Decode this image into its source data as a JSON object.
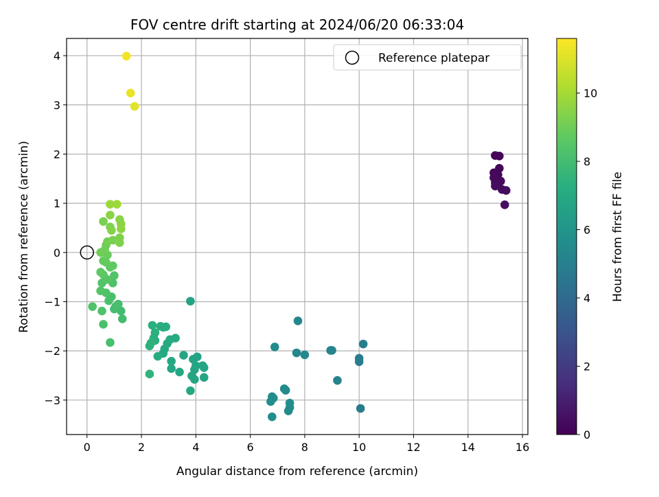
{
  "chart_data": {
    "type": "scatter",
    "title": "FOV centre drift starting at 2024/06/20 06:33:04",
    "xlabel": "Angular distance from reference (arcmin)",
    "ylabel": "Rotation from reference (arcmin)",
    "xlim": [
      -0.75,
      16.2
    ],
    "ylim": [
      -3.7,
      4.35
    ],
    "xticks": [
      0,
      2,
      4,
      6,
      8,
      10,
      12,
      14,
      16
    ],
    "yticks": [
      -3,
      -2,
      -1,
      0,
      1,
      2,
      3,
      4
    ],
    "grid": true,
    "legend": {
      "position": "top-right",
      "label": "Reference platepar",
      "marker": "open-circle"
    },
    "reference_point": {
      "x": 0,
      "y": 0
    },
    "colorbar": {
      "label": "Hours from first FF file",
      "range": [
        0,
        11.6
      ],
      "ticks": [
        0,
        2,
        4,
        6,
        8,
        10
      ],
      "colormap": "viridis"
    },
    "points": [
      {
        "x": 15.0,
        "y": 1.97,
        "c": 0.1
      },
      {
        "x": 15.15,
        "y": 1.96,
        "c": 0.1
      },
      {
        "x": 15.15,
        "y": 1.71,
        "c": 0.2
      },
      {
        "x": 14.95,
        "y": 1.62,
        "c": 0.2
      },
      {
        "x": 15.1,
        "y": 1.58,
        "c": 0.2
      },
      {
        "x": 14.95,
        "y": 1.52,
        "c": 0.3
      },
      {
        "x": 15.05,
        "y": 1.48,
        "c": 0.3
      },
      {
        "x": 15.2,
        "y": 1.45,
        "c": 0.3
      },
      {
        "x": 15.0,
        "y": 1.42,
        "c": 0.3
      },
      {
        "x": 15.1,
        "y": 1.38,
        "c": 0.3
      },
      {
        "x": 15.0,
        "y": 1.35,
        "c": 0.4
      },
      {
        "x": 15.25,
        "y": 1.28,
        "c": 0.4
      },
      {
        "x": 15.4,
        "y": 1.26,
        "c": 0.4
      },
      {
        "x": 15.35,
        "y": 0.97,
        "c": 0.5
      },
      {
        "x": 10.15,
        "y": -1.86,
        "c": 4.9
      },
      {
        "x": 10.0,
        "y": -2.15,
        "c": 4.9
      },
      {
        "x": 10.0,
        "y": -2.22,
        "c": 4.9
      },
      {
        "x": 10.05,
        "y": -3.17,
        "c": 4.8
      },
      {
        "x": 9.2,
        "y": -2.6,
        "c": 5.1
      },
      {
        "x": 8.95,
        "y": -1.99,
        "c": 5.2
      },
      {
        "x": 9.0,
        "y": -1.99,
        "c": 5.2
      },
      {
        "x": 8.0,
        "y": -2.08,
        "c": 5.4
      },
      {
        "x": 7.7,
        "y": -2.04,
        "c": 5.4
      },
      {
        "x": 7.75,
        "y": -1.39,
        "c": 5.3
      },
      {
        "x": 6.9,
        "y": -1.92,
        "c": 5.5
      },
      {
        "x": 7.25,
        "y": -2.77,
        "c": 5.5
      },
      {
        "x": 7.3,
        "y": -2.8,
        "c": 5.5
      },
      {
        "x": 7.45,
        "y": -3.06,
        "c": 5.6
      },
      {
        "x": 7.45,
        "y": -3.15,
        "c": 5.6
      },
      {
        "x": 7.4,
        "y": -3.22,
        "c": 5.6
      },
      {
        "x": 6.8,
        "y": -2.93,
        "c": 5.6
      },
      {
        "x": 6.85,
        "y": -2.96,
        "c": 5.6
      },
      {
        "x": 6.75,
        "y": -3.03,
        "c": 5.6
      },
      {
        "x": 6.8,
        "y": -3.34,
        "c": 5.6
      },
      {
        "x": 3.8,
        "y": -0.99,
        "c": 6.7
      },
      {
        "x": 4.05,
        "y": -2.12,
        "c": 6.7
      },
      {
        "x": 3.9,
        "y": -2.17,
        "c": 6.7
      },
      {
        "x": 3.55,
        "y": -2.09,
        "c": 6.8
      },
      {
        "x": 4.0,
        "y": -2.3,
        "c": 6.8
      },
      {
        "x": 4.25,
        "y": -2.3,
        "c": 6.8
      },
      {
        "x": 4.3,
        "y": -2.34,
        "c": 6.8
      },
      {
        "x": 3.95,
        "y": -2.38,
        "c": 6.8
      },
      {
        "x": 4.3,
        "y": -2.54,
        "c": 6.8
      },
      {
        "x": 3.85,
        "y": -2.51,
        "c": 6.8
      },
      {
        "x": 3.95,
        "y": -2.58,
        "c": 6.8
      },
      {
        "x": 3.8,
        "y": -2.81,
        "c": 6.9
      },
      {
        "x": 3.4,
        "y": -2.43,
        "c": 6.9
      },
      {
        "x": 3.1,
        "y": -2.36,
        "c": 6.9
      },
      {
        "x": 3.1,
        "y": -2.21,
        "c": 6.9
      },
      {
        "x": 3.25,
        "y": -1.74,
        "c": 7.0
      },
      {
        "x": 3.05,
        "y": -1.77,
        "c": 7.0
      },
      {
        "x": 2.95,
        "y": -1.85,
        "c": 7.0
      },
      {
        "x": 2.85,
        "y": -1.96,
        "c": 7.0
      },
      {
        "x": 2.8,
        "y": -2.05,
        "c": 7.0
      },
      {
        "x": 2.6,
        "y": -2.11,
        "c": 7.1
      },
      {
        "x": 2.7,
        "y": -1.5,
        "c": 7.2
      },
      {
        "x": 2.8,
        "y": -1.52,
        "c": 7.2
      },
      {
        "x": 2.9,
        "y": -1.51,
        "c": 7.2
      },
      {
        "x": 2.4,
        "y": -1.48,
        "c": 7.3
      },
      {
        "x": 2.5,
        "y": -1.63,
        "c": 7.3
      },
      {
        "x": 2.45,
        "y": -1.74,
        "c": 7.3
      },
      {
        "x": 2.5,
        "y": -1.79,
        "c": 7.3
      },
      {
        "x": 2.35,
        "y": -1.84,
        "c": 7.4
      },
      {
        "x": 2.3,
        "y": -1.9,
        "c": 7.4
      },
      {
        "x": 2.3,
        "y": -2.47,
        "c": 7.5
      },
      {
        "x": 0.85,
        "y": -1.83,
        "c": 8.1
      },
      {
        "x": 0.6,
        "y": -1.46,
        "c": 8.2
      },
      {
        "x": 0.55,
        "y": -1.19,
        "c": 8.3
      },
      {
        "x": 0.2,
        "y": -1.1,
        "c": 8.3
      },
      {
        "x": 1.3,
        "y": -1.35,
        "c": 8.0
      },
      {
        "x": 1.25,
        "y": -1.19,
        "c": 8.0
      },
      {
        "x": 1.15,
        "y": -1.05,
        "c": 8.1
      },
      {
        "x": 1.0,
        "y": -1.15,
        "c": 8.1
      },
      {
        "x": 0.9,
        "y": -0.9,
        "c": 8.2
      },
      {
        "x": 1.05,
        "y": -1.1,
        "c": 8.1
      },
      {
        "x": 0.8,
        "y": -0.98,
        "c": 8.2
      },
      {
        "x": 0.7,
        "y": -0.82,
        "c": 8.3
      },
      {
        "x": 0.5,
        "y": -0.78,
        "c": 8.4
      },
      {
        "x": 0.55,
        "y": -0.62,
        "c": 8.4
      },
      {
        "x": 0.95,
        "y": -0.62,
        "c": 8.3
      },
      {
        "x": 1.0,
        "y": -0.47,
        "c": 8.4
      },
      {
        "x": 0.75,
        "y": -0.55,
        "c": 8.5
      },
      {
        "x": 0.6,
        "y": -0.45,
        "c": 8.6
      },
      {
        "x": 0.5,
        "y": -0.4,
        "c": 8.7
      },
      {
        "x": 0.85,
        "y": -0.3,
        "c": 8.7
      },
      {
        "x": 0.95,
        "y": -0.27,
        "c": 8.7
      },
      {
        "x": 0.7,
        "y": -0.2,
        "c": 8.8
      },
      {
        "x": 0.6,
        "y": -0.17,
        "c": 8.8
      },
      {
        "x": 0.75,
        "y": -0.05,
        "c": 8.9
      },
      {
        "x": 0.5,
        "y": 0.0,
        "c": 9.0
      },
      {
        "x": 0.65,
        "y": 0.05,
        "c": 9.0
      },
      {
        "x": 0.7,
        "y": 0.15,
        "c": 9.0
      },
      {
        "x": 0.75,
        "y": 0.22,
        "c": 9.1
      },
      {
        "x": 0.95,
        "y": 0.25,
        "c": 9.2
      },
      {
        "x": 1.2,
        "y": 0.2,
        "c": 9.3
      },
      {
        "x": 1.2,
        "y": 0.3,
        "c": 9.3
      },
      {
        "x": 0.6,
        "y": 0.63,
        "c": 9.2
      },
      {
        "x": 0.85,
        "y": 0.52,
        "c": 9.3
      },
      {
        "x": 0.9,
        "y": 0.45,
        "c": 9.4
      },
      {
        "x": 0.85,
        "y": 0.76,
        "c": 9.5
      },
      {
        "x": 1.2,
        "y": 0.67,
        "c": 9.5
      },
      {
        "x": 1.25,
        "y": 0.58,
        "c": 9.5
      },
      {
        "x": 1.25,
        "y": 0.48,
        "c": 9.6
      },
      {
        "x": 0.85,
        "y": 0.98,
        "c": 9.8
      },
      {
        "x": 1.1,
        "y": 0.98,
        "c": 9.9
      },
      {
        "x": 1.45,
        "y": 3.99,
        "c": 11.4
      },
      {
        "x": 1.6,
        "y": 3.24,
        "c": 11.2
      },
      {
        "x": 1.75,
        "y": 2.97,
        "c": 11.1
      }
    ]
  }
}
